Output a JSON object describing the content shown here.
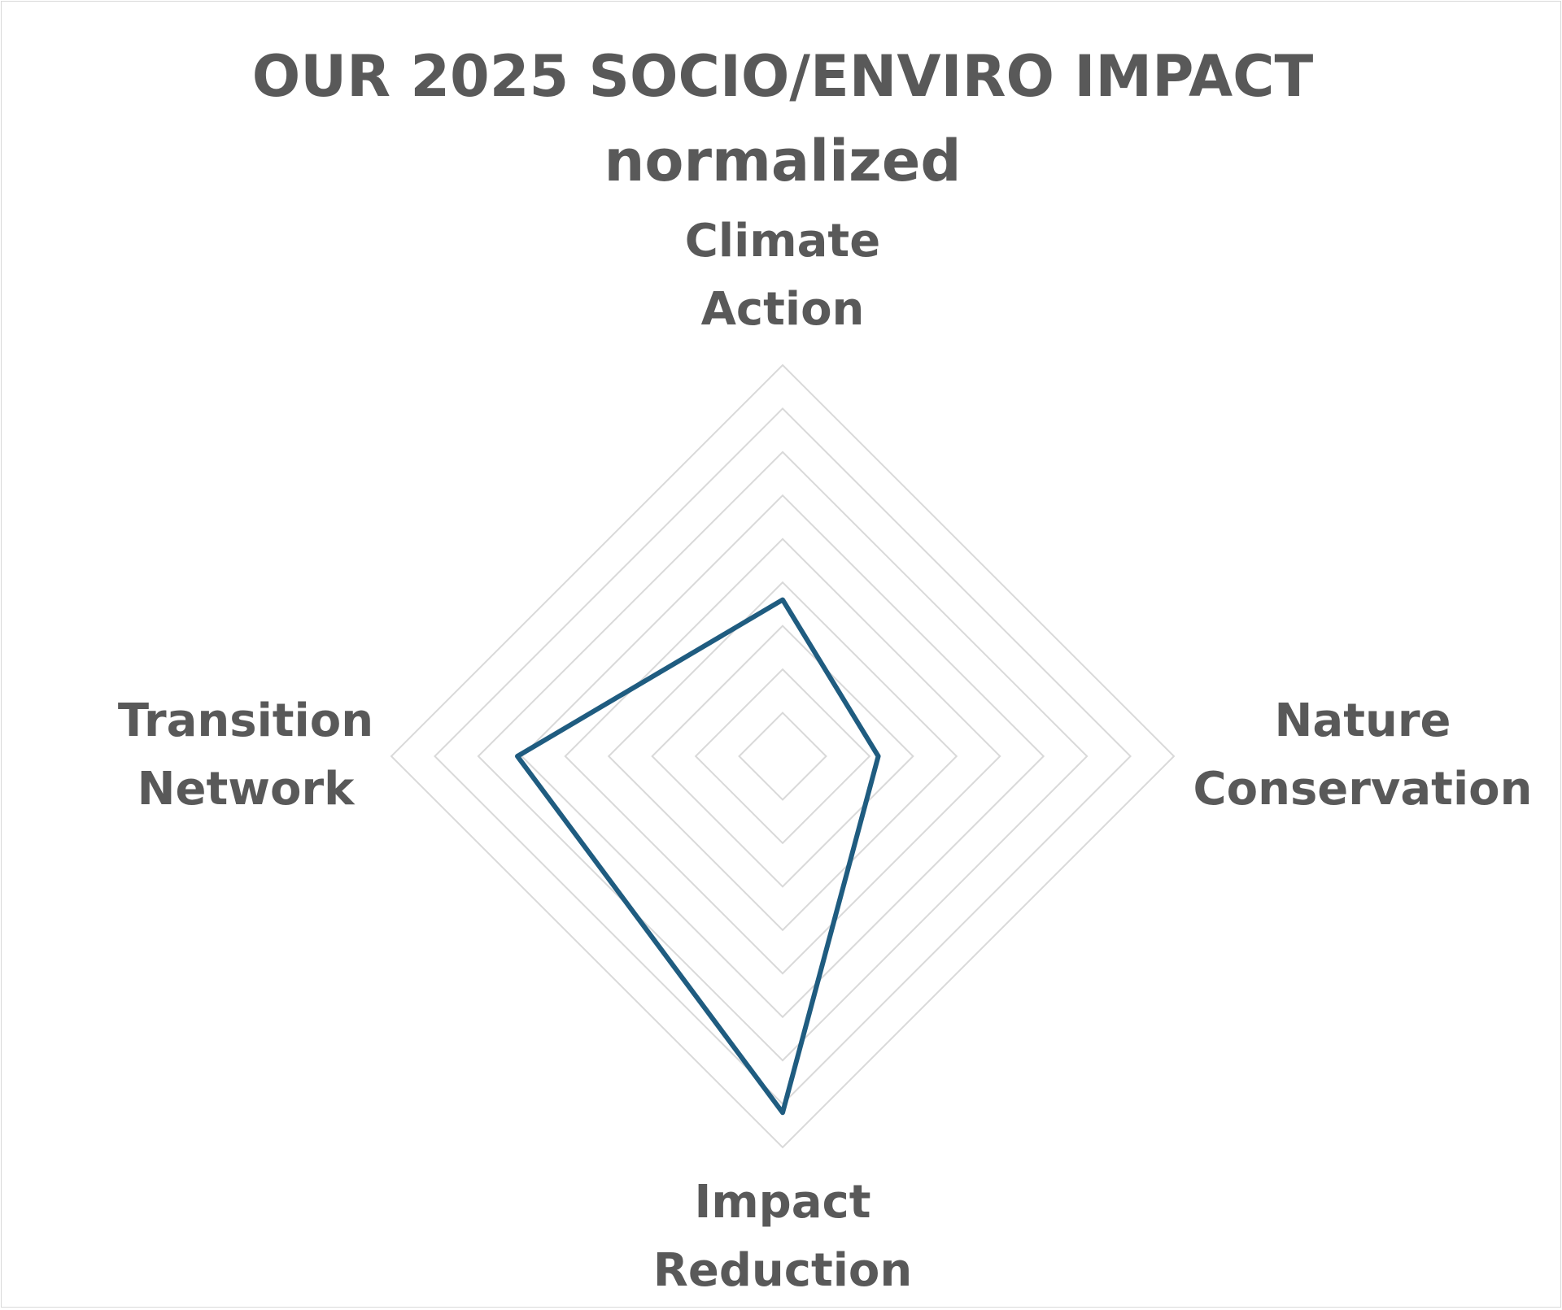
{
  "chart_data": {
    "type": "radar",
    "title": "OUR 2025 SOCIO/ENVIRO IMPACT normalized",
    "categories": [
      "Climate Action",
      "Nature Conservation",
      "Impact Reduction",
      "Transition Network"
    ],
    "series": [
      {
        "color": "#1f5c80",
        "values": [
          0.36,
          0.22,
          0.82,
          0.61
        ]
      }
    ],
    "rlim": [
      0,
      0.9
    ],
    "rticks": [
      0,
      0.1,
      0.2,
      0.3,
      0.4,
      0.5,
      0.6,
      0.7,
      0.8,
      0.9
    ],
    "grid": true
  }
}
